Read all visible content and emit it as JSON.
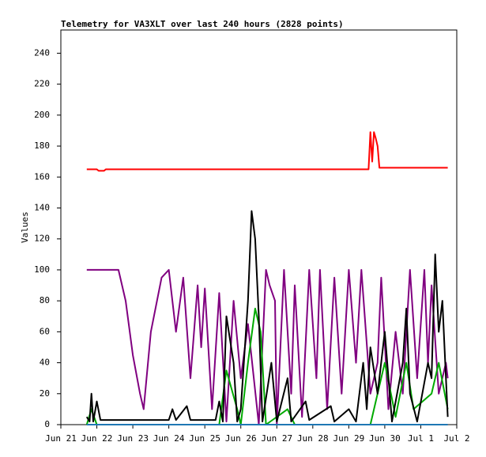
{
  "chart_data": {
    "type": "line",
    "title": "Telemetry for VA3XLT over last 240 hours (2828 points)",
    "y_label": "Values",
    "xlim": [
      0,
      11
    ],
    "ylim": [
      0,
      255
    ],
    "xticks": [
      {
        "value": 0,
        "label": "Jun 21"
      },
      {
        "value": 1,
        "label": "Jun 22"
      },
      {
        "value": 2,
        "label": "Jun 23"
      },
      {
        "value": 3,
        "label": "Jun 24"
      },
      {
        "value": 4,
        "label": "Jun 25"
      },
      {
        "value": 5,
        "label": "Jun 26"
      },
      {
        "value": 6,
        "label": "Jun 27"
      },
      {
        "value": 7,
        "label": "Jun 28"
      },
      {
        "value": 8,
        "label": "Jun 29"
      },
      {
        "value": 9,
        "label": "Jun 30"
      },
      {
        "value": 10,
        "label": "Jul 1"
      },
      {
        "value": 11,
        "label": "Jul 2"
      }
    ],
    "yticks": [
      0,
      20,
      40,
      60,
      80,
      100,
      120,
      140,
      160,
      180,
      200,
      220,
      240
    ],
    "series": [
      {
        "color": "#ff0000",
        "x": [
          0.72,
          1.0,
          1.05,
          1.2,
          1.25,
          8.55,
          8.6,
          8.65,
          8.7,
          8.75,
          8.8,
          8.85,
          8.9,
          10.75
        ],
        "values": [
          165,
          165,
          164,
          164,
          165,
          165,
          189,
          170,
          189,
          185,
          180,
          166,
          166,
          166
        ]
      },
      {
        "color": "#800080",
        "x": [
          0.72,
          1.6,
          1.8,
          2.0,
          2.2,
          2.3,
          2.5,
          2.8,
          3.0,
          3.2,
          3.4,
          3.6,
          3.8,
          3.9,
          4.0,
          4.2,
          4.4,
          4.6,
          4.8,
          5.0,
          5.2,
          5.5,
          5.7,
          5.8,
          5.95,
          6.0,
          6.2,
          6.4,
          6.5,
          6.7,
          6.9,
          7.1,
          7.2,
          7.4,
          7.6,
          7.8,
          8.0,
          8.2,
          8.35,
          8.6,
          8.8,
          8.9,
          9.1,
          9.3,
          9.5,
          9.7,
          9.9,
          10.1,
          10.2,
          10.3,
          10.5,
          10.7,
          10.75
        ],
        "values": [
          100,
          100,
          80,
          45,
          20,
          10,
          60,
          95,
          100,
          60,
          95,
          30,
          90,
          50,
          88,
          10,
          85,
          2,
          80,
          30,
          65,
          0,
          100,
          90,
          80,
          0,
          100,
          20,
          90,
          5,
          100,
          30,
          100,
          10,
          95,
          20,
          100,
          40,
          100,
          20,
          40,
          95,
          10,
          60,
          20,
          100,
          30,
          100,
          40,
          90,
          20,
          40,
          30
        ]
      },
      {
        "color": "#00aa00",
        "x": [
          0.72,
          0.85,
          1.0,
          4.4,
          4.6,
          4.9,
          5.0,
          5.2,
          5.4,
          5.55,
          5.7,
          6.3,
          6.5,
          8.6,
          9.0,
          9.3,
          9.6,
          9.8,
          10.3,
          10.5,
          10.75
        ],
        "values": [
          0,
          10,
          0,
          0,
          35,
          10,
          0,
          40,
          75,
          60,
          0,
          10,
          0,
          0,
          40,
          5,
          40,
          10,
          20,
          40,
          10
        ]
      },
      {
        "color": "#000000",
        "x": [
          0.72,
          0.8,
          0.85,
          0.9,
          1.0,
          1.1,
          2.0,
          3.0,
          3.1,
          3.2,
          3.5,
          3.6,
          4.3,
          4.4,
          4.5,
          4.6,
          4.8,
          4.9,
          5.0,
          5.2,
          5.3,
          5.4,
          5.5,
          5.6,
          5.85,
          6.0,
          6.3,
          6.4,
          6.8,
          6.9,
          7.5,
          7.6,
          8.0,
          8.2,
          8.4,
          8.5,
          8.6,
          8.8,
          9.0,
          9.2,
          9.5,
          9.6,
          9.7,
          9.9,
          10.2,
          10.3,
          10.4,
          10.5,
          10.6,
          10.7,
          10.75
        ],
        "values": [
          5,
          2,
          20,
          2,
          15,
          3,
          3,
          3,
          10,
          3,
          12,
          3,
          3,
          15,
          2,
          70,
          40,
          2,
          10,
          80,
          138,
          120,
          70,
          2,
          40,
          2,
          30,
          2,
          15,
          3,
          12,
          2,
          10,
          2,
          40,
          10,
          50,
          20,
          60,
          2,
          40,
          75,
          20,
          2,
          40,
          30,
          110,
          60,
          80,
          30,
          5
        ]
      },
      {
        "color": "#1f77b4",
        "x": [
          0.72,
          10.75
        ],
        "values": [
          0,
          0
        ]
      }
    ]
  }
}
